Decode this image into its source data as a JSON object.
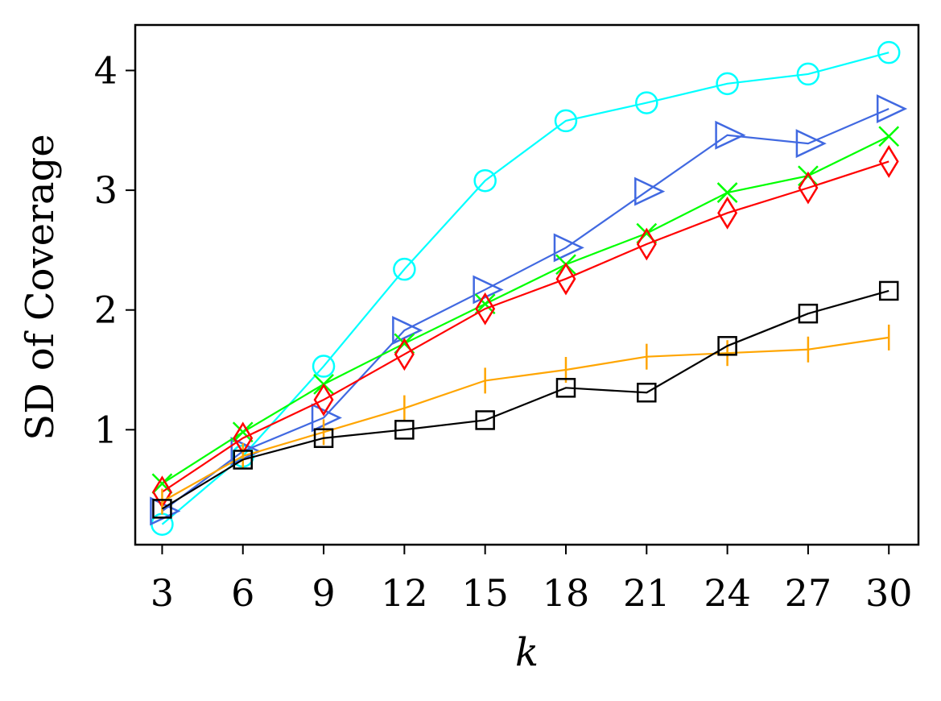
{
  "chart_data": {
    "type": "line",
    "title": "",
    "xlabel": "k",
    "ylabel": "SD of Coverage",
    "xlim": [
      2,
      31.1
    ],
    "ylim": [
      0.04,
      4.38
    ],
    "xticks": [
      3,
      6,
      9,
      12,
      15,
      18,
      21,
      24,
      27,
      30
    ],
    "yticks": [
      1,
      2,
      3,
      4
    ],
    "grid": false,
    "legend": "none",
    "x": [
      3,
      6,
      9,
      12,
      15,
      18,
      21,
      24,
      27,
      30
    ],
    "series": [
      {
        "color": "#00ffff",
        "marker": "circle",
        "values": [
          0.21,
          0.78,
          1.53,
          2.34,
          3.08,
          3.58,
          3.73,
          3.89,
          3.97,
          4.15
        ]
      },
      {
        "color": "#4169e1",
        "marker": "triangle-right",
        "values": [
          0.32,
          0.82,
          1.1,
          1.83,
          2.17,
          2.52,
          2.99,
          3.46,
          3.39,
          3.68
        ]
      },
      {
        "color": "#00ff00",
        "marker": "x",
        "values": [
          0.55,
          0.98,
          1.38,
          1.72,
          2.05,
          2.38,
          2.64,
          2.98,
          3.12,
          3.45
        ]
      },
      {
        "color": "#ff0000",
        "marker": "diamond",
        "values": [
          0.48,
          0.93,
          1.25,
          1.63,
          2.01,
          2.26,
          2.55,
          2.81,
          3.02,
          3.24
        ]
      },
      {
        "color": "#ffa500",
        "marker": "vline",
        "values": [
          0.4,
          0.78,
          0.98,
          1.18,
          1.41,
          1.5,
          1.61,
          1.64,
          1.67,
          1.77
        ]
      },
      {
        "color": "#000000",
        "marker": "square",
        "values": [
          0.34,
          0.75,
          0.93,
          1.0,
          1.08,
          1.35,
          1.31,
          1.7,
          1.97,
          2.16
        ]
      }
    ]
  }
}
